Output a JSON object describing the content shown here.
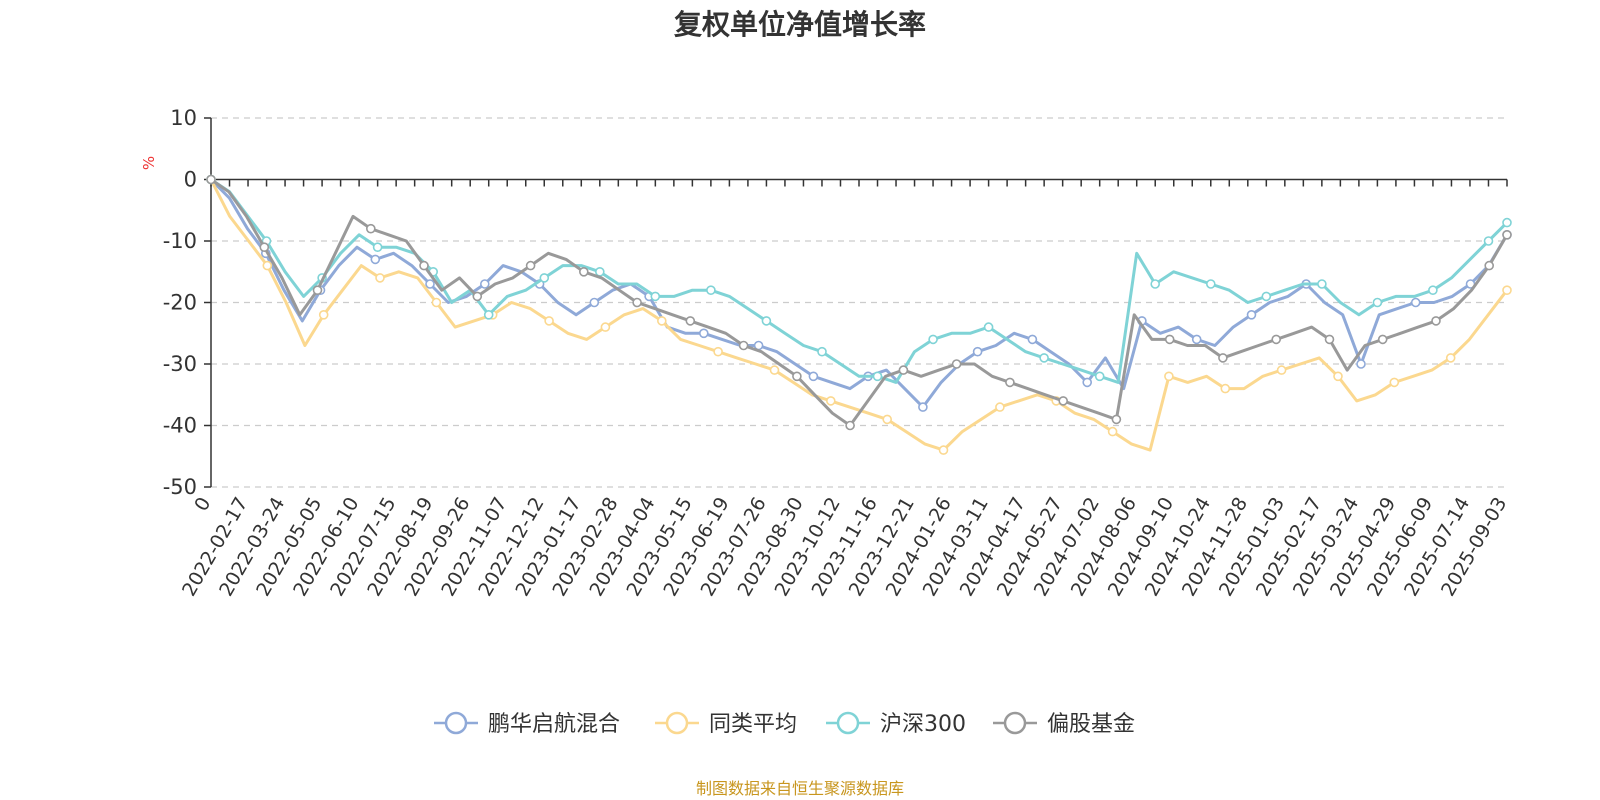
{
  "chart_data": {
    "type": "line",
    "title": "复权单位净值增长率",
    "ylabel": "%",
    "ylim": [
      -50,
      10
    ],
    "yticks": [
      10,
      0,
      -10,
      -20,
      -30,
      -40,
      -50
    ],
    "grid": true,
    "legend_position": "bottom",
    "x_tick_labels": [
      "0",
      "2022-02-17",
      "2022-03-24",
      "2022-05-05",
      "2022-06-10",
      "2022-07-15",
      "2022-08-19",
      "2022-09-26",
      "2022-11-07",
      "2022-12-12",
      "2023-01-17",
      "2023-02-28",
      "2023-04-04",
      "2023-05-15",
      "2023-06-19",
      "2023-07-26",
      "2023-08-30",
      "2023-10-12",
      "2023-11-16",
      "2023-12-21",
      "2024-01-26",
      "2024-03-11",
      "2024-04-17",
      "2024-05-27",
      "2024-07-02",
      "2024-08-06",
      "2024-09-10",
      "2024-10-24",
      "2024-11-28",
      "2025-01-03",
      "2025-02-17",
      "2025-03-24",
      "2025-04-29",
      "2025-06-09",
      "2025-07-14",
      "2025-09-03"
    ],
    "series": [
      {
        "name": "鹏华启航混合",
        "color": "#8fa9d8",
        "values": [
          0,
          -3,
          -8,
          -12,
          -18,
          -23,
          -18,
          -14,
          -11,
          -13,
          -12,
          -14,
          -17,
          -20,
          -19,
          -17,
          -14,
          -15,
          -17,
          -20,
          -22,
          -20,
          -18,
          -17,
          -19,
          -24,
          -25,
          -25,
          -26,
          -27,
          -27,
          -28,
          -30,
          -32,
          -33,
          -34,
          -32,
          -31,
          -34,
          -37,
          -33,
          -30,
          -28,
          -27,
          -25,
          -26,
          -28,
          -30,
          -33,
          -29,
          -34,
          -23,
          -25,
          -24,
          -26,
          -27,
          -24,
          -22,
          -20,
          -19,
          -17,
          -20,
          -22,
          -30,
          -22,
          -21,
          -20,
          -20,
          -19,
          -17,
          -14,
          -9
        ]
      },
      {
        "name": "同类平均",
        "color": "#fbd88f",
        "values": [
          0,
          -6,
          -10,
          -14,
          -20,
          -27,
          -22,
          -18,
          -14,
          -16,
          -15,
          -16,
          -20,
          -24,
          -23,
          -22,
          -20,
          -21,
          -23,
          -25,
          -26,
          -24,
          -22,
          -21,
          -23,
          -26,
          -27,
          -28,
          -29,
          -30,
          -31,
          -33,
          -35,
          -36,
          -37,
          -38,
          -39,
          -41,
          -43,
          -44,
          -41,
          -39,
          -37,
          -36,
          -35,
          -36,
          -38,
          -39,
          -41,
          -43,
          -44,
          -32,
          -33,
          -32,
          -34,
          -34,
          -32,
          -31,
          -30,
          -29,
          -32,
          -36,
          -35,
          -33,
          -32,
          -31,
          -29,
          -26,
          -22,
          -18
        ]
      },
      {
        "name": "沪深300",
        "color": "#7fd3d6",
        "values": [
          0,
          -2,
          -6,
          -10,
          -15,
          -19,
          -16,
          -12,
          -9,
          -11,
          -11,
          -12,
          -15,
          -20,
          -18,
          -22,
          -19,
          -18,
          -16,
          -14,
          -14,
          -15,
          -17,
          -17,
          -19,
          -19,
          -18,
          -18,
          -19,
          -21,
          -23,
          -25,
          -27,
          -28,
          -30,
          -32,
          -32,
          -33,
          -28,
          -26,
          -25,
          -25,
          -24,
          -26,
          -28,
          -29,
          -30,
          -31,
          -32,
          -33,
          -12,
          -17,
          -15,
          -16,
          -17,
          -18,
          -20,
          -19,
          -18,
          -17,
          -17,
          -20,
          -22,
          -20,
          -19,
          -19,
          -18,
          -16,
          -13,
          -10,
          -7
        ]
      },
      {
        "name": "偏股基金",
        "color": "#999999",
        "values": [
          0,
          -2,
          -6,
          -11,
          -16,
          -22,
          -18,
          -12,
          -6,
          -8,
          -9,
          -10,
          -14,
          -18,
          -16,
          -19,
          -17,
          -16,
          -14,
          -12,
          -13,
          -15,
          -16,
          -18,
          -20,
          -21,
          -22,
          -23,
          -24,
          -25,
          -27,
          -28,
          -30,
          -32,
          -35,
          -38,
          -40,
          -36,
          -32,
          -31,
          -32,
          -31,
          -30,
          -30,
          -32,
          -33,
          -34,
          -35,
          -36,
          -37,
          -38,
          -39,
          -22,
          -26,
          -26,
          -27,
          -27,
          -29,
          -28,
          -27,
          -26,
          -25,
          -24,
          -26,
          -31,
          -27,
          -26,
          -25,
          -24,
          -23,
          -21,
          -18,
          -14,
          -9
        ]
      }
    ],
    "source": "制图数据来自恒生聚源数据库"
  }
}
